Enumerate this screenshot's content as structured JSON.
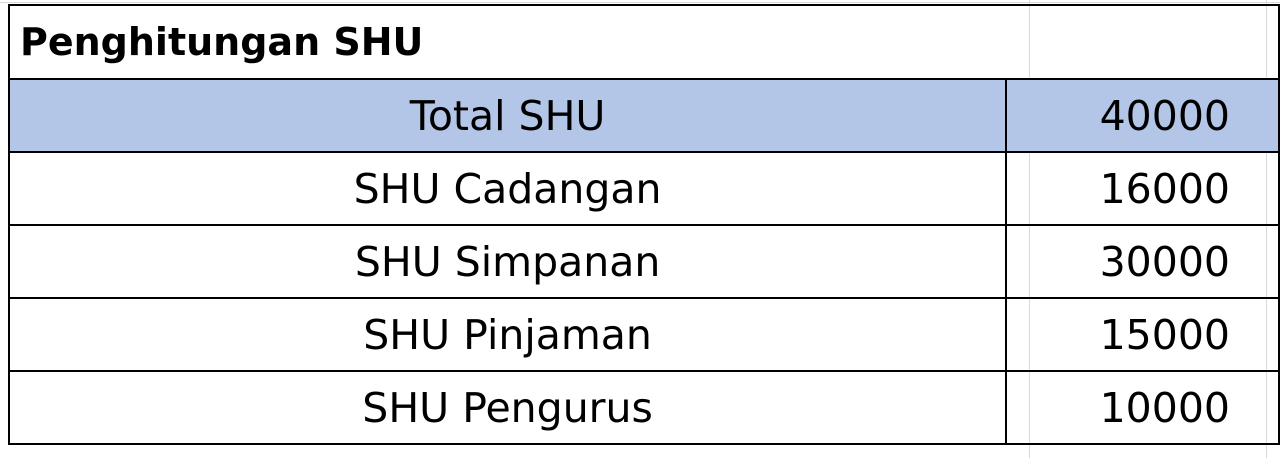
{
  "sheet": {
    "title": "Penghitungan SHU",
    "header_fill": "#b4c6e7",
    "rows": [
      {
        "label": "Total SHU",
        "value": "40000"
      },
      {
        "label": "SHU Cadangan",
        "value": "16000"
      },
      {
        "label": "SHU Simpanan",
        "value": "30000"
      },
      {
        "label": "SHU Pinjaman",
        "value": "15000"
      },
      {
        "label": "SHU Pengurus",
        "value": "10000"
      }
    ]
  }
}
